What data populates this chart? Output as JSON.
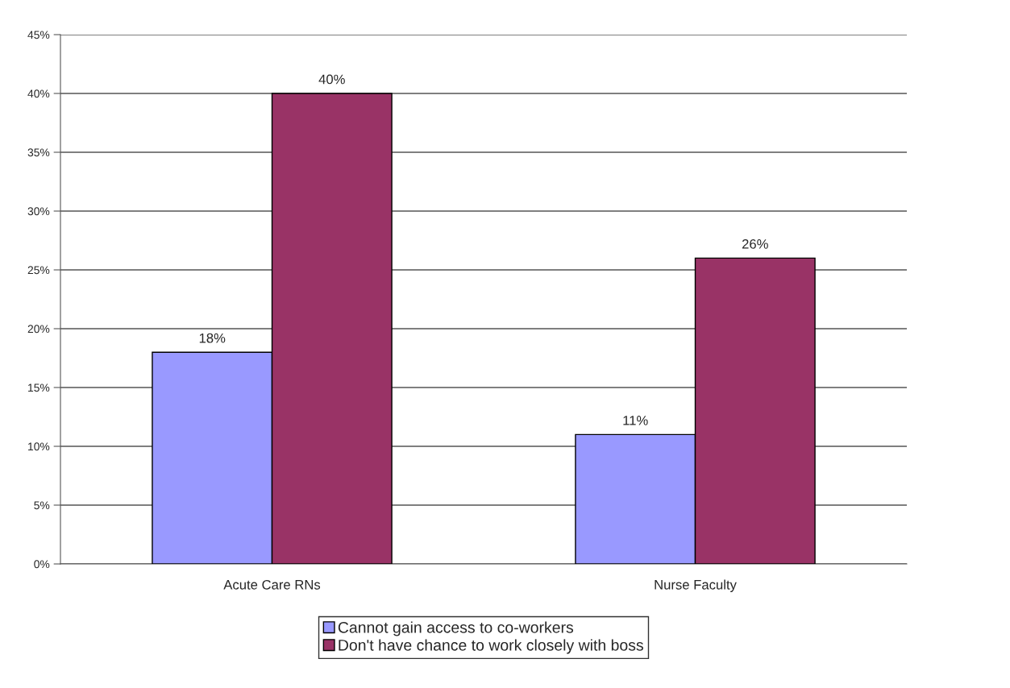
{
  "chart_data": {
    "type": "bar",
    "categories": [
      "Acute Care RNs",
      "Nurse Faculty"
    ],
    "series": [
      {
        "name": "Cannot gain access to co-workers",
        "color": "#9999ff",
        "values": [
          18,
          11
        ]
      },
      {
        "name": "Don't have chance to work closely with boss",
        "color": "#993366",
        "values": [
          40,
          26
        ]
      }
    ],
    "ylim": [
      0,
      45
    ],
    "yticks": [
      {
        "value": 0,
        "label": "0%"
      },
      {
        "value": 5,
        "label": "5%"
      },
      {
        "value": 10,
        "label": "10%"
      },
      {
        "value": 15,
        "label": "15%"
      },
      {
        "value": 20,
        "label": "20%"
      },
      {
        "value": 25,
        "label": "25%"
      },
      {
        "value": 30,
        "label": "30%"
      },
      {
        "value": 35,
        "label": "35%"
      },
      {
        "value": 40,
        "label": "40%"
      },
      {
        "value": 45,
        "label": "45%"
      }
    ],
    "value_labels": [
      [
        "18%",
        "11%"
      ],
      [
        "40%",
        "26%"
      ]
    ],
    "grid": "y",
    "legend": "bottom"
  }
}
